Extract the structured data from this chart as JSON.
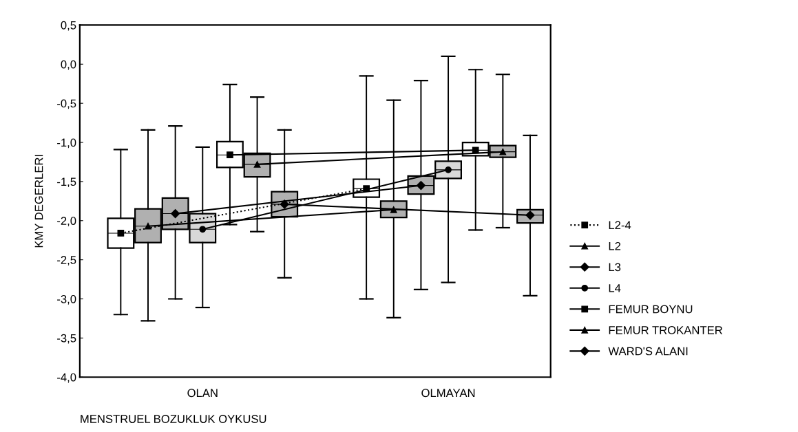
{
  "chart_data": {
    "type": "box",
    "xlabel": "MENSTRUEL BOZUKLUK OYKUSU",
    "ylabel": "KMY DEGERLERI",
    "categories": [
      null,
      null,
      null,
      "OLAN",
      null,
      null,
      null,
      null,
      null,
      null,
      null,
      null,
      "OLMAYAN",
      null,
      null,
      null
    ],
    "ylim": [
      -4.0,
      0.5
    ],
    "yticks": [
      {
        "value": 0.5,
        "label": "0,5"
      },
      {
        "value": 0.0,
        "label": "0,0"
      },
      {
        "value": -0.5,
        "label": "-0,5"
      },
      {
        "value": -1.0,
        "label": "-1,0"
      },
      {
        "value": -1.5,
        "label": "-1,5"
      },
      {
        "value": -2.0,
        "label": "-2,0"
      },
      {
        "value": -2.5,
        "label": "-2,5"
      },
      {
        "value": -3.0,
        "label": "-3,0"
      },
      {
        "value": -3.5,
        "label": "-3,5"
      },
      {
        "value": -4.0,
        "label": "-4,0"
      }
    ],
    "grid": false,
    "legend": "right",
    "colors": [
      "#ffffff",
      "#b0b0b0",
      "#b0b0b0",
      "#d8d8d8",
      "#ffffff",
      "#b0b0b0",
      "#b0b0b0",
      null,
      null,
      "#ffffff",
      "#b0b0b0",
      "#b0b0b0",
      "#d8d8d8",
      "#ffffff",
      "#b0b0b0",
      "#b0b0b0"
    ],
    "boxes": [
      {
        "low": -3.2,
        "q1": -2.35,
        "median": -2.16,
        "q3": -1.97,
        "high": -1.09
      },
      {
        "low": -3.28,
        "q1": -2.28,
        "median": -2.07,
        "q3": -1.85,
        "high": -0.84
      },
      {
        "low": -3.0,
        "q1": -2.11,
        "median": -1.91,
        "q3": -1.71,
        "high": -0.79
      },
      {
        "low": -3.11,
        "q1": -2.28,
        "median": -2.11,
        "q3": -1.91,
        "high": -1.06
      },
      {
        "low": -2.05,
        "q1": -1.32,
        "median": -1.16,
        "q3": -0.99,
        "high": -0.26
      },
      {
        "low": -2.14,
        "q1": -1.44,
        "median": -1.28,
        "q3": -1.14,
        "high": -0.42
      },
      {
        "low": -2.73,
        "q1": -1.95,
        "median": -1.79,
        "q3": -1.63,
        "high": -0.84
      },
      null,
      null,
      {
        "low": -3.0,
        "q1": -1.7,
        "median": -1.59,
        "q3": -1.47,
        "high": -0.15
      },
      {
        "low": -3.24,
        "q1": -1.96,
        "median": -1.86,
        "q3": -1.75,
        "high": -0.46
      },
      {
        "low": -2.88,
        "q1": -1.66,
        "median": -1.55,
        "q3": -1.43,
        "high": -0.21
      },
      {
        "low": -2.79,
        "q1": -1.46,
        "median": -1.35,
        "q3": -1.24,
        "high": 0.1
      },
      {
        "low": -2.12,
        "q1": -1.17,
        "median": -1.1,
        "q3": -1.0,
        "high": -0.07
      },
      {
        "low": -2.09,
        "q1": -1.19,
        "median": -1.12,
        "q3": -1.04,
        "high": -0.13
      },
      {
        "low": -2.96,
        "q1": -2.03,
        "median": -1.93,
        "q3": -1.86,
        "high": -0.91
      }
    ],
    "series": [
      {
        "type": "line",
        "name": "L2-4",
        "color": "#000000",
        "marker": "square",
        "line_style": "dotted",
        "values": [
          -2.16,
          null,
          null,
          null,
          null,
          null,
          null,
          null,
          null,
          -1.59,
          null,
          null,
          null,
          null,
          null,
          null
        ]
      },
      {
        "type": "line",
        "name": "L2",
        "color": "#000000",
        "marker": "triangle",
        "line_style": "solid",
        "values": [
          null,
          -2.07,
          null,
          null,
          null,
          null,
          null,
          null,
          null,
          null,
          -1.86,
          null,
          null,
          null,
          null,
          null
        ]
      },
      {
        "type": "line",
        "name": "L3",
        "color": "#000000",
        "marker": "diamond",
        "line_style": "solid",
        "values": [
          null,
          null,
          -1.91,
          null,
          null,
          null,
          null,
          null,
          null,
          null,
          null,
          -1.55,
          null,
          null,
          null,
          null
        ]
      },
      {
        "type": "line",
        "name": "L4",
        "color": "#000000",
        "marker": "circle",
        "line_style": "solid",
        "values": [
          null,
          null,
          null,
          -2.11,
          null,
          null,
          null,
          null,
          null,
          null,
          null,
          null,
          -1.35,
          null,
          null,
          null
        ]
      },
      {
        "type": "line",
        "name": "FEMUR BOYNU",
        "color": "#000000",
        "marker": "square",
        "line_style": "solid",
        "values": [
          null,
          null,
          null,
          null,
          -1.16,
          null,
          null,
          null,
          null,
          null,
          null,
          null,
          null,
          -1.1,
          null,
          null
        ]
      },
      {
        "type": "line",
        "name": "FEMUR TROKANTER",
        "color": "#000000",
        "marker": "triangle",
        "line_style": "solid",
        "values": [
          null,
          null,
          null,
          null,
          null,
          -1.28,
          null,
          null,
          null,
          null,
          null,
          null,
          null,
          null,
          -1.12,
          null
        ]
      },
      {
        "type": "line",
        "name": "WARD'S ALANI",
        "color": "#000000",
        "marker": "diamond",
        "line_style": "solid",
        "values": [
          null,
          null,
          null,
          null,
          null,
          null,
          -1.79,
          null,
          null,
          null,
          null,
          null,
          null,
          null,
          null,
          -1.93
        ]
      }
    ]
  }
}
